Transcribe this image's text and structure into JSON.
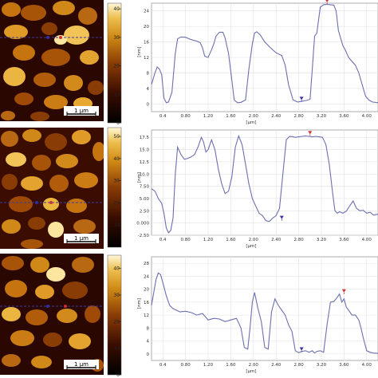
{
  "colors": {
    "afm_dark": "#2a0700",
    "afm_mid": "#8a3c05",
    "afm_bright": "#e8a020",
    "afm_highlight": "#fbe6a0",
    "profile_line": "#6c6fb0",
    "section_line": "#3a3aa0",
    "marker_red": "#d03030",
    "marker_blue": "#3030a0",
    "grid": "#e2e2e2",
    "plot_border": "#9a9a9a"
  },
  "scale_bar_label": "1 µm",
  "chart_data": [
    {
      "type": "line",
      "xlabel": "[µm]",
      "ylabel": "[nm]",
      "xlim": [
        0.2,
        4.2
      ],
      "ylim": [
        -2,
        26
      ],
      "xticks": [
        "0.4",
        "0.80",
        "1.20",
        "1.60",
        "2.00",
        "2.40",
        "2.80",
        "3.20",
        "3.60",
        "4.00"
      ],
      "xtick_values": [
        0.4,
        0.8,
        1.2,
        1.6,
        2.0,
        2.4,
        2.8,
        3.2,
        3.6,
        4.0
      ],
      "yticks": [
        "0",
        "4",
        "8",
        "12",
        "16",
        "20",
        "24"
      ],
      "ytick_values": [
        0,
        4,
        8,
        12,
        16,
        20,
        24
      ],
      "colorbar_ticks": [
        "40",
        "30",
        "20",
        "10",
        "0"
      ],
      "colorbar_values": [
        40,
        30,
        20,
        10,
        0
      ],
      "colorbar_max": 42,
      "markers": [
        {
          "x": 3.3,
          "y": 25.8,
          "color": "red"
        },
        {
          "x": 2.85,
          "y": 0.6,
          "color": "blue"
        }
      ],
      "series": [
        {
          "x": [
            0.2,
            0.26,
            0.3,
            0.34,
            0.38,
            0.42,
            0.46,
            0.5,
            0.56,
            0.62,
            0.66,
            0.72,
            0.8,
            0.9,
            1.0,
            1.06,
            1.1,
            1.14,
            1.2,
            1.26,
            1.3,
            1.34,
            1.4,
            1.46,
            1.5,
            1.56,
            1.62,
            1.66,
            1.72,
            1.78,
            1.86,
            1.92,
            1.98,
            2.02,
            2.06,
            2.12,
            2.2,
            2.3,
            2.4,
            2.5,
            2.56,
            2.62,
            2.7,
            2.78,
            2.86,
            2.94,
            3.0,
            3.04,
            3.08,
            3.12,
            3.18,
            3.24,
            3.3,
            3.36,
            3.42,
            3.46,
            3.5,
            3.54,
            3.58,
            3.62,
            3.68,
            3.74,
            3.8,
            3.86,
            3.92,
            3.98,
            4.04,
            4.1,
            4.2
          ],
          "y": [
            5,
            8,
            9.5,
            9,
            7.5,
            1.5,
            0.3,
            0.5,
            3,
            13,
            16.8,
            17.3,
            17.2,
            16.6,
            16.2,
            15.8,
            14.5,
            12.3,
            12,
            14,
            15.5,
            17.5,
            18.5,
            18.5,
            17,
            13,
            6,
            1,
            0.3,
            0.4,
            1,
            9,
            15.5,
            18.3,
            18.6,
            17.8,
            16,
            14.5,
            13.2,
            12.5,
            10,
            5,
            1,
            0.5,
            0.7,
            0.9,
            1.2,
            9,
            17.5,
            18.3,
            25,
            25.6,
            25.7,
            25.6,
            25.5,
            24,
            19,
            17,
            15,
            14,
            12,
            11,
            10,
            8,
            5,
            2,
            1,
            0.5,
            0.3
          ]
        }
      ]
    },
    {
      "type": "line",
      "xlabel": "[µm]",
      "ylabel": "[nm]",
      "xlim": [
        0.2,
        4.2
      ],
      "ylim": [
        -2.5,
        19
      ],
      "xticks": [
        "0.4",
        "0.80",
        "1.20",
        "1.60",
        "2.00",
        "2.40",
        "2.80",
        "3.20",
        "3.60",
        "4.00"
      ],
      "xtick_values": [
        0.4,
        0.8,
        1.2,
        1.6,
        2.0,
        2.4,
        2.8,
        3.2,
        3.6,
        4.0
      ],
      "yticks": [
        "-2.50",
        "0.000",
        "2.50",
        "5.00",
        "7.50",
        "10.0",
        "12.5",
        "15.0",
        "17.5"
      ],
      "ytick_values": [
        -2.5,
        0,
        2.5,
        5,
        7.5,
        10,
        12.5,
        15,
        17.5
      ],
      "colorbar_ticks": [
        "50",
        "40",
        "30",
        "20",
        "10"
      ],
      "colorbar_values": [
        50,
        40,
        30,
        20,
        10
      ],
      "colorbar_max": 54,
      "markers": [
        {
          "x": 3.0,
          "y": 17.8,
          "color": "red"
        },
        {
          "x": 2.5,
          "y": 0.5,
          "color": "blue"
        }
      ],
      "series": [
        {
          "x": [
            0.2,
            0.26,
            0.32,
            0.38,
            0.42,
            0.46,
            0.5,
            0.54,
            0.58,
            0.62,
            0.66,
            0.72,
            0.78,
            0.84,
            0.9,
            0.96,
            1.02,
            1.08,
            1.12,
            1.16,
            1.2,
            1.26,
            1.32,
            1.38,
            1.44,
            1.5,
            1.56,
            1.62,
            1.68,
            1.74,
            1.8,
            1.86,
            1.92,
            1.98,
            2.04,
            2.1,
            2.16,
            2.22,
            2.28,
            2.34,
            2.4,
            2.46,
            2.52,
            2.58,
            2.64,
            2.7,
            2.74,
            2.8,
            2.86,
            2.92,
            2.98,
            3.04,
            3.1,
            3.16,
            3.22,
            3.28,
            3.34,
            3.4,
            3.44,
            3.48,
            3.52,
            3.58,
            3.64,
            3.7,
            3.76,
            3.82,
            3.88,
            3.94,
            4.0,
            4.06,
            4.12,
            4.2
          ],
          "y": [
            7,
            6.5,
            5,
            4,
            2,
            -1,
            -2,
            -1.5,
            1,
            10,
            15.5,
            14,
            13,
            13.2,
            13.5,
            14,
            15.5,
            17.5,
            16.5,
            14.5,
            15,
            17,
            15,
            11,
            8,
            6,
            6.5,
            9.5,
            15.5,
            17.8,
            16,
            12,
            8,
            5,
            3.5,
            2,
            1.5,
            0.5,
            0.3,
            1,
            1.5,
            3,
            10,
            17,
            17.7,
            17.6,
            17.5,
            17.6,
            17.7,
            17.8,
            17.7,
            17.6,
            17.7,
            17.6,
            17.5,
            16,
            12,
            6,
            2.5,
            2,
            2.3,
            2,
            2.4,
            3.5,
            4.5,
            3,
            2.5,
            2.6,
            2,
            2.2,
            1.6,
            1.8
          ]
        }
      ]
    },
    {
      "type": "line",
      "xlabel": "[µm]",
      "ylabel": "[nm]",
      "xlim": [
        0.2,
        4.2
      ],
      "ylim": [
        -2,
        30
      ],
      "xticks": [
        "0.4",
        "0.80",
        "1.20",
        "1.60",
        "2.00",
        "2.40",
        "2.80",
        "3.20",
        "3.60",
        "4.00"
      ],
      "xtick_values": [
        0.4,
        0.8,
        1.2,
        1.6,
        2.0,
        2.4,
        2.8,
        3.2,
        3.6,
        4.0
      ],
      "yticks": [
        "0",
        "4",
        "8",
        "12",
        "16",
        "20",
        "24",
        "28"
      ],
      "ytick_values": [
        0,
        4,
        8,
        12,
        16,
        20,
        24,
        28
      ],
      "colorbar_ticks": [
        "40",
        "30",
        "20",
        "10",
        "0"
      ],
      "colorbar_values": [
        40,
        30,
        20,
        10,
        0
      ],
      "colorbar_max": 45,
      "markers": [
        {
          "x": 3.6,
          "y": 18.5,
          "color": "red"
        },
        {
          "x": 2.85,
          "y": 0.6,
          "color": "blue"
        }
      ],
      "series": [
        {
          "x": [
            0.2,
            0.24,
            0.28,
            0.32,
            0.36,
            0.4,
            0.46,
            0.52,
            0.58,
            0.64,
            0.7,
            0.8,
            0.9,
            1.0,
            1.1,
            1.2,
            1.3,
            1.4,
            1.5,
            1.6,
            1.7,
            1.78,
            1.84,
            1.9,
            1.94,
            1.98,
            2.02,
            2.08,
            2.14,
            2.2,
            2.26,
            2.32,
            2.38,
            2.44,
            2.5,
            2.56,
            2.62,
            2.68,
            2.74,
            2.8,
            2.86,
            2.92,
            2.98,
            3.04,
            3.08,
            3.12,
            3.18,
            3.24,
            3.3,
            3.36,
            3.42,
            3.48,
            3.52,
            3.56,
            3.6,
            3.64,
            3.68,
            3.74,
            3.8,
            3.86,
            3.9,
            3.94,
            4.0,
            4.06,
            4.12,
            4.2
          ],
          "y": [
            15,
            19,
            23,
            25,
            24.5,
            22,
            18,
            15,
            14,
            13.5,
            13,
            13.2,
            12.8,
            12,
            12.5,
            10.5,
            11,
            10.8,
            10,
            10.5,
            11,
            8,
            2,
            1.5,
            8,
            16,
            19,
            14,
            10,
            2,
            1.5,
            13,
            17,
            15,
            13.5,
            12,
            9,
            7,
            1,
            0.4,
            0.8,
            1,
            0.5,
            1,
            0.3,
            0.8,
            1,
            0.5,
            9,
            16,
            16.2,
            17.5,
            18.5,
            16,
            17,
            14.5,
            13.5,
            12,
            12,
            10.5,
            8,
            5,
            1,
            0.5,
            0.3,
            0.2
          ]
        }
      ]
    }
  ]
}
